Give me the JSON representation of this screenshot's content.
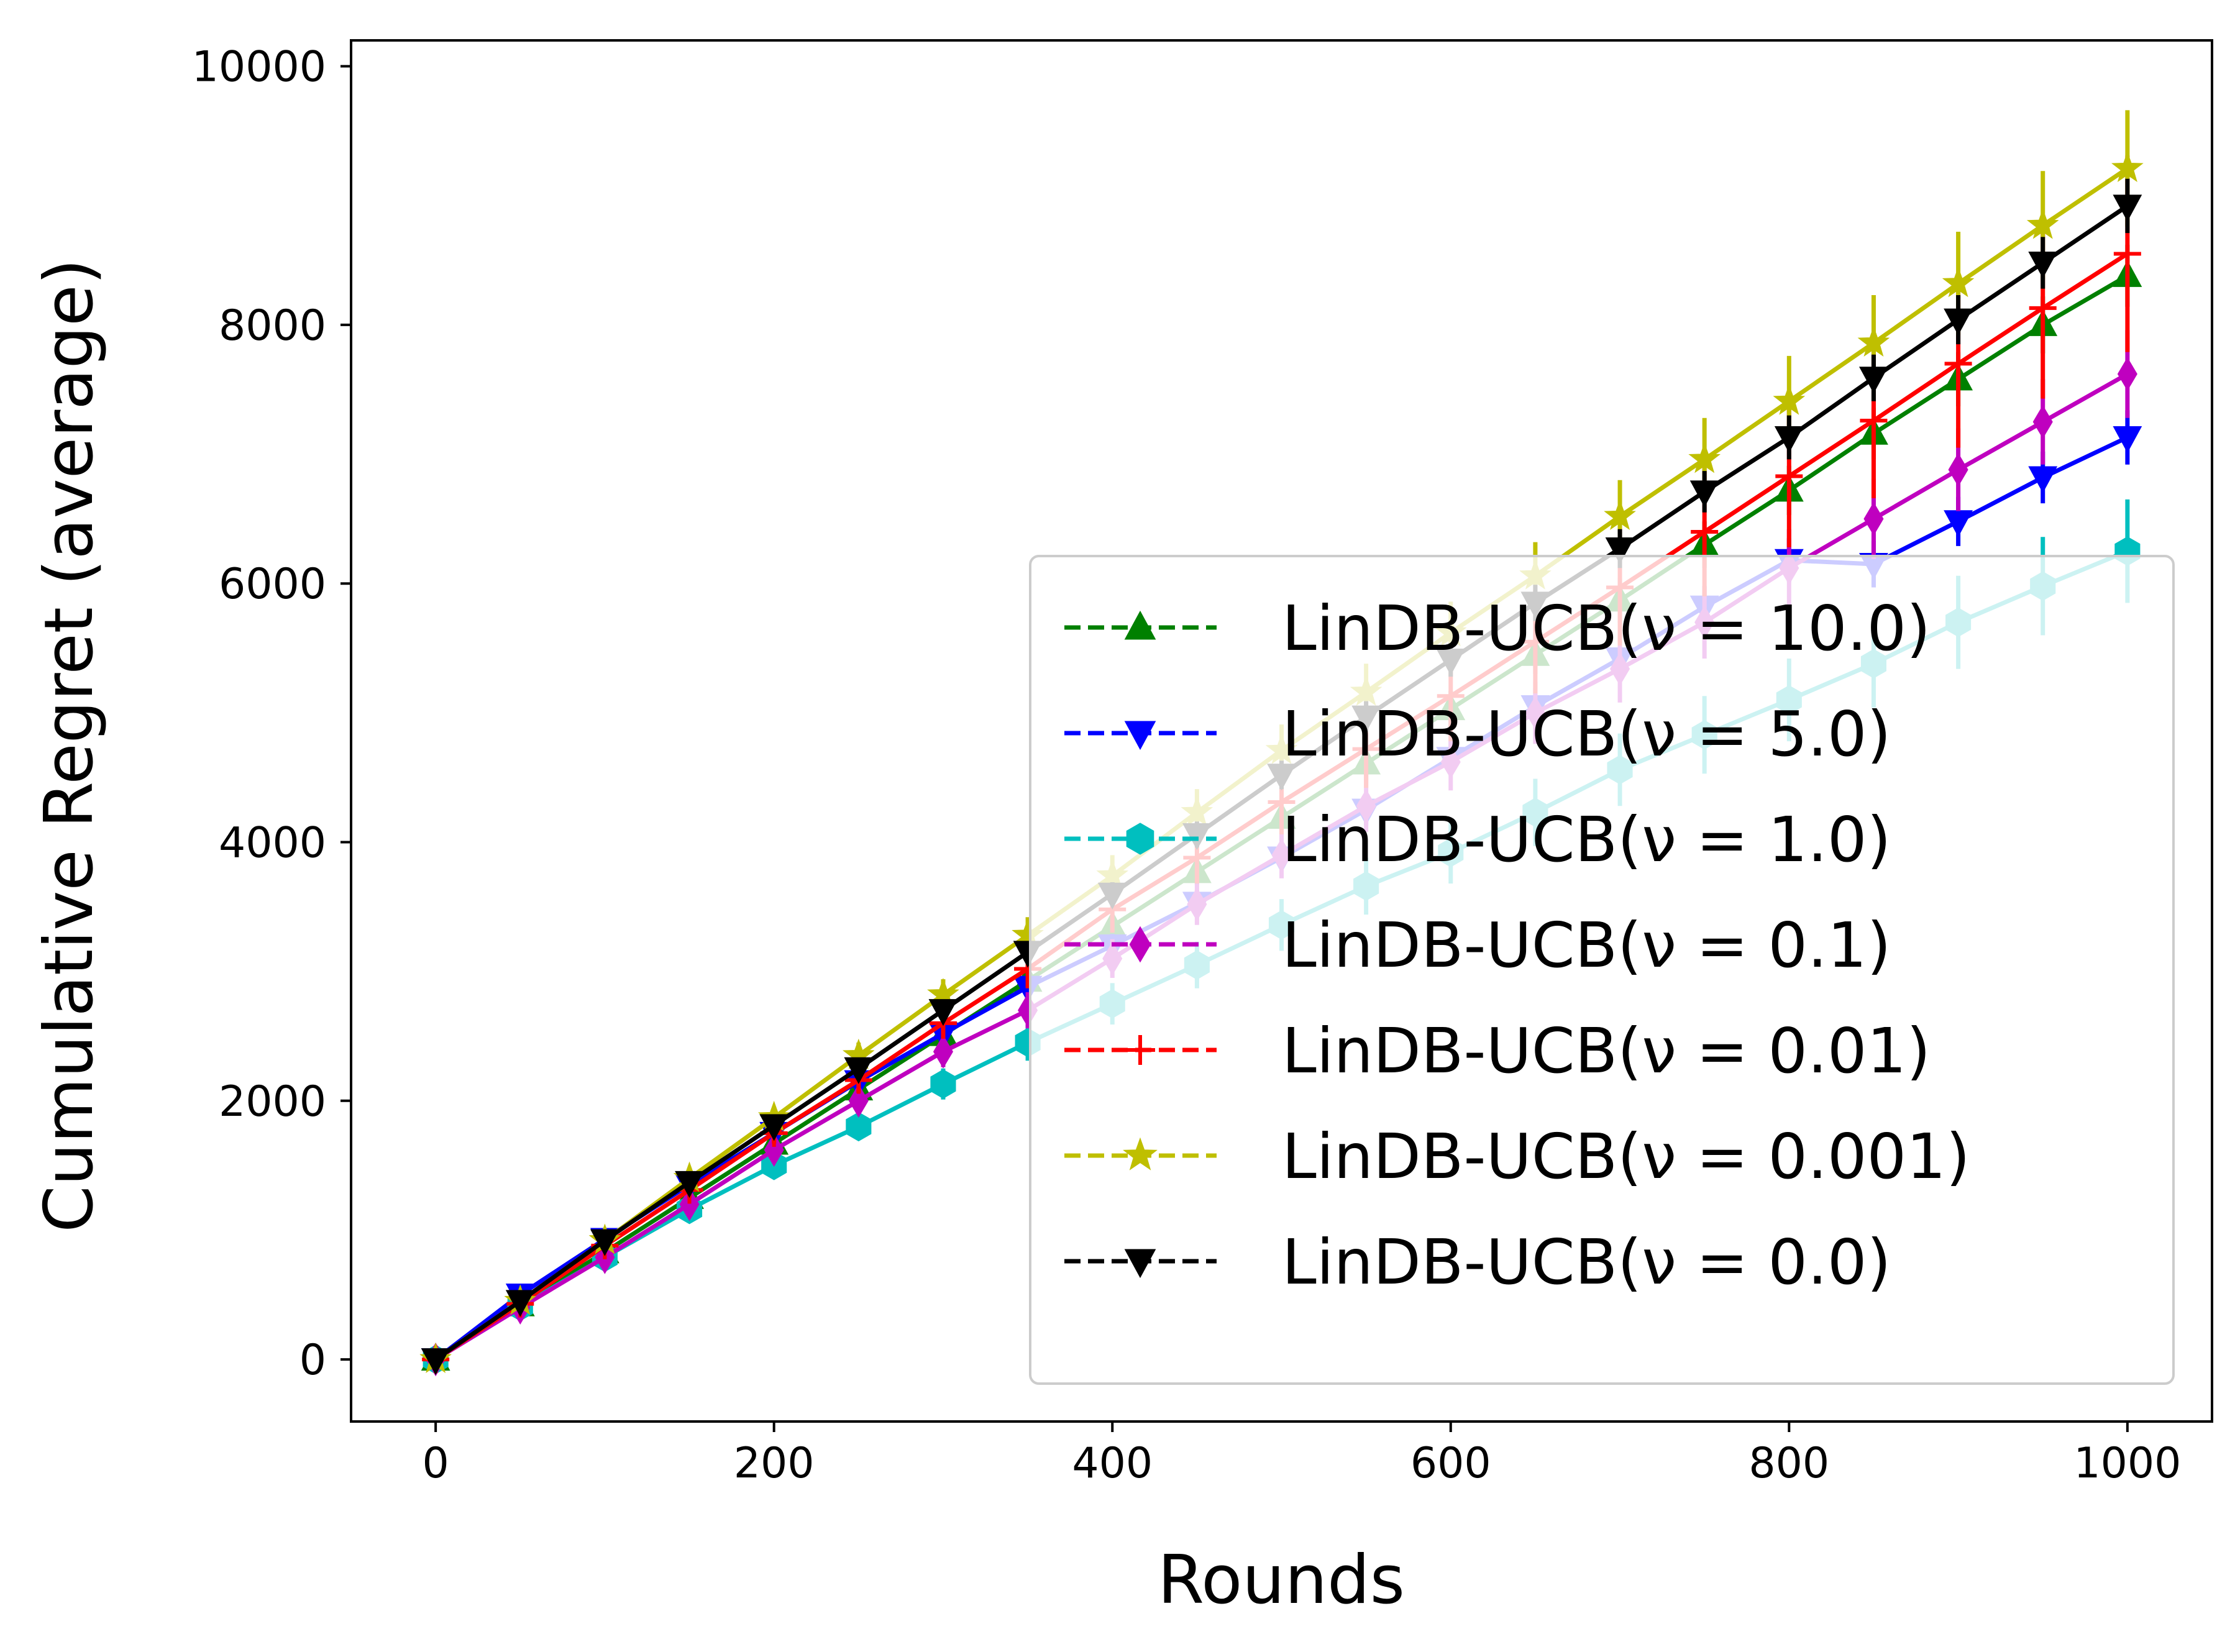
{
  "chart_data": {
    "type": "line",
    "title": "",
    "xlabel": "Rounds",
    "ylabel": "Cumulative Regret (average)",
    "xlim": [
      -50,
      1050
    ],
    "ylim": [
      -480,
      10200
    ],
    "xticks": [
      0,
      200,
      400,
      600,
      800,
      1000
    ],
    "yticks": [
      0,
      2000,
      4000,
      6000,
      8000,
      10000
    ],
    "x": [
      0,
      50,
      100,
      150,
      200,
      250,
      300,
      350,
      400,
      450,
      500,
      550,
      600,
      650,
      700,
      750,
      800,
      850,
      900,
      950,
      1000
    ],
    "legend_position": "lower-right",
    "series": [
      {
        "name": "LinDB-UCB(ν = 10.0)",
        "color": "#008000",
        "marker": "triangle-up",
        "values": [
          0,
          420,
          830,
          1250,
          1670,
          2090,
          2510,
          2930,
          3350,
          3770,
          4190,
          4610,
          5030,
          5450,
          5870,
          6300,
          6720,
          7160,
          7580,
          8000,
          8380
        ],
        "errors": [
          0,
          20,
          30,
          40,
          50,
          60,
          70,
          80,
          90,
          100,
          120,
          130,
          140,
          150,
          170,
          180,
          190,
          200,
          210,
          220,
          240
        ]
      },
      {
        "name": "LinDB-UCB(ν = 5.0)",
        "color": "#0000ff",
        "marker": "triangle-down",
        "values": [
          0,
          500,
          930,
          1350,
          1750,
          2150,
          2520,
          2880,
          3200,
          3530,
          3880,
          4250,
          4650,
          5050,
          5420,
          5820,
          6180,
          6150,
          6480,
          6820,
          7130
        ],
        "errors": [
          0,
          20,
          30,
          40,
          50,
          60,
          70,
          80,
          90,
          100,
          110,
          120,
          130,
          140,
          150,
          160,
          170,
          180,
          190,
          200,
          210
        ]
      },
      {
        "name": "LinDB-UCB(ν = 1.0)",
        "color": "#00bfbf",
        "marker": "hexagon",
        "values": [
          0,
          410,
          790,
          1160,
          1500,
          1800,
          2130,
          2450,
          2750,
          3050,
          3360,
          3660,
          3920,
          4230,
          4560,
          4830,
          5100,
          5380,
          5700,
          5980,
          6250
        ],
        "errors": [
          0,
          20,
          40,
          60,
          80,
          100,
          120,
          140,
          160,
          180,
          200,
          220,
          240,
          260,
          280,
          300,
          320,
          340,
          360,
          380,
          400
        ]
      },
      {
        "name": "LinDB-UCB(ν = 0.1)",
        "color": "#bf00bf",
        "marker": "diamond",
        "values": [
          0,
          400,
          790,
          1200,
          1620,
          2000,
          2380,
          2700,
          3100,
          3520,
          3900,
          4280,
          4620,
          5000,
          5340,
          5700,
          6120,
          6500,
          6880,
          7250,
          7620
        ],
        "errors": [
          0,
          20,
          40,
          60,
          80,
          100,
          120,
          140,
          150,
          160,
          180,
          200,
          220,
          240,
          260,
          280,
          300,
          310,
          320,
          330,
          340
        ]
      },
      {
        "name": "LinDB-UCB(ν = 0.01)",
        "color": "#ff0000",
        "marker": "plus",
        "values": [
          0,
          430,
          880,
          1310,
          1750,
          2160,
          2600,
          3020,
          3480,
          3880,
          4310,
          4720,
          5130,
          5550,
          5970,
          6400,
          6830,
          7260,
          7700,
          8130,
          8550
        ],
        "errors": [
          0,
          20,
          40,
          60,
          80,
          100,
          120,
          150,
          180,
          200,
          250,
          300,
          350,
          400,
          450,
          500,
          550,
          600,
          650,
          700,
          760
        ]
      },
      {
        "name": "LinDB-UCB(ν = 0.001)",
        "color": "#bfbf00",
        "marker": "star",
        "values": [
          0,
          450,
          920,
          1400,
          1870,
          2350,
          2820,
          3280,
          3740,
          4230,
          4710,
          5160,
          5620,
          6060,
          6520,
          6960,
          7410,
          7860,
          8320,
          8770,
          9210
        ],
        "errors": [
          0,
          20,
          40,
          60,
          80,
          100,
          120,
          140,
          160,
          180,
          200,
          220,
          240,
          260,
          280,
          320,
          350,
          370,
          400,
          420,
          450
        ]
      },
      {
        "name": "LinDB-UCB(ν = 0.0)",
        "color": "#000000",
        "marker": "triangle-down",
        "values": [
          0,
          450,
          920,
          1370,
          1810,
          2250,
          2700,
          3150,
          3600,
          4060,
          4520,
          4970,
          5410,
          5850,
          6270,
          6710,
          7130,
          7590,
          8040,
          8480,
          8920
        ],
        "errors": [
          0,
          20,
          30,
          40,
          50,
          60,
          70,
          80,
          90,
          100,
          110,
          120,
          130,
          140,
          150,
          160,
          170,
          180,
          190,
          200,
          210
        ]
      }
    ]
  }
}
